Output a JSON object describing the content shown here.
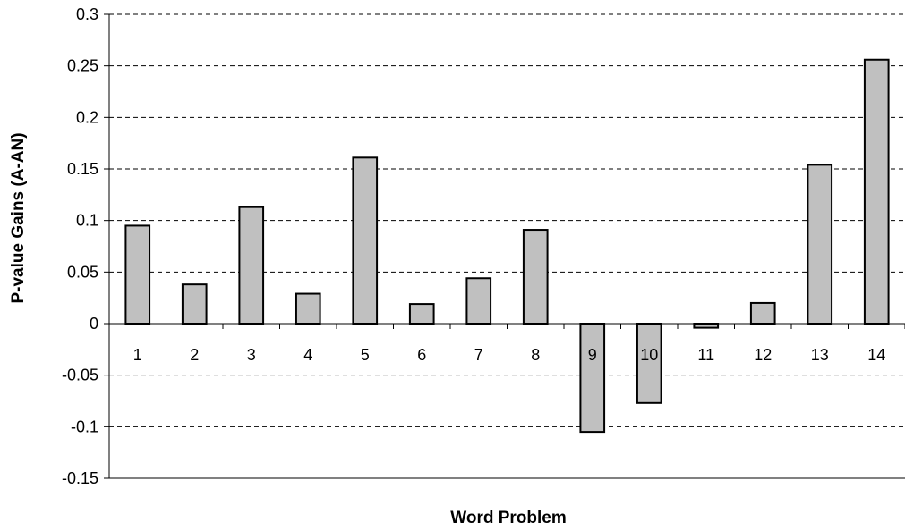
{
  "chart_data": {
    "type": "bar",
    "title": "",
    "xlabel": "Word Problem",
    "ylabel": "P-value Gains (A-AN)",
    "categories": [
      "1",
      "2",
      "3",
      "4",
      "5",
      "6",
      "7",
      "8",
      "9",
      "10",
      "11",
      "12",
      "13",
      "14"
    ],
    "values": [
      0.095,
      0.038,
      0.113,
      0.029,
      0.161,
      0.019,
      0.044,
      0.091,
      -0.105,
      -0.077,
      -0.004,
      0.02,
      0.154,
      0.256
    ],
    "ylim": [
      -0.15,
      0.3
    ],
    "yticks": [
      0.3,
      0.25,
      0.2,
      0.15,
      0.1,
      0.05,
      0,
      -0.05,
      -0.1,
      -0.15
    ],
    "ytick_labels": [
      "0.3",
      "0.25",
      "0.2",
      "0.15",
      "0.1",
      "0.05",
      "0",
      "-0.05",
      "-0.1",
      "-0.15"
    ],
    "grid": true,
    "grid_style": "dashed",
    "legend": false,
    "bar_color": "#c0c0c0",
    "bar_edge_color": "#000000"
  }
}
